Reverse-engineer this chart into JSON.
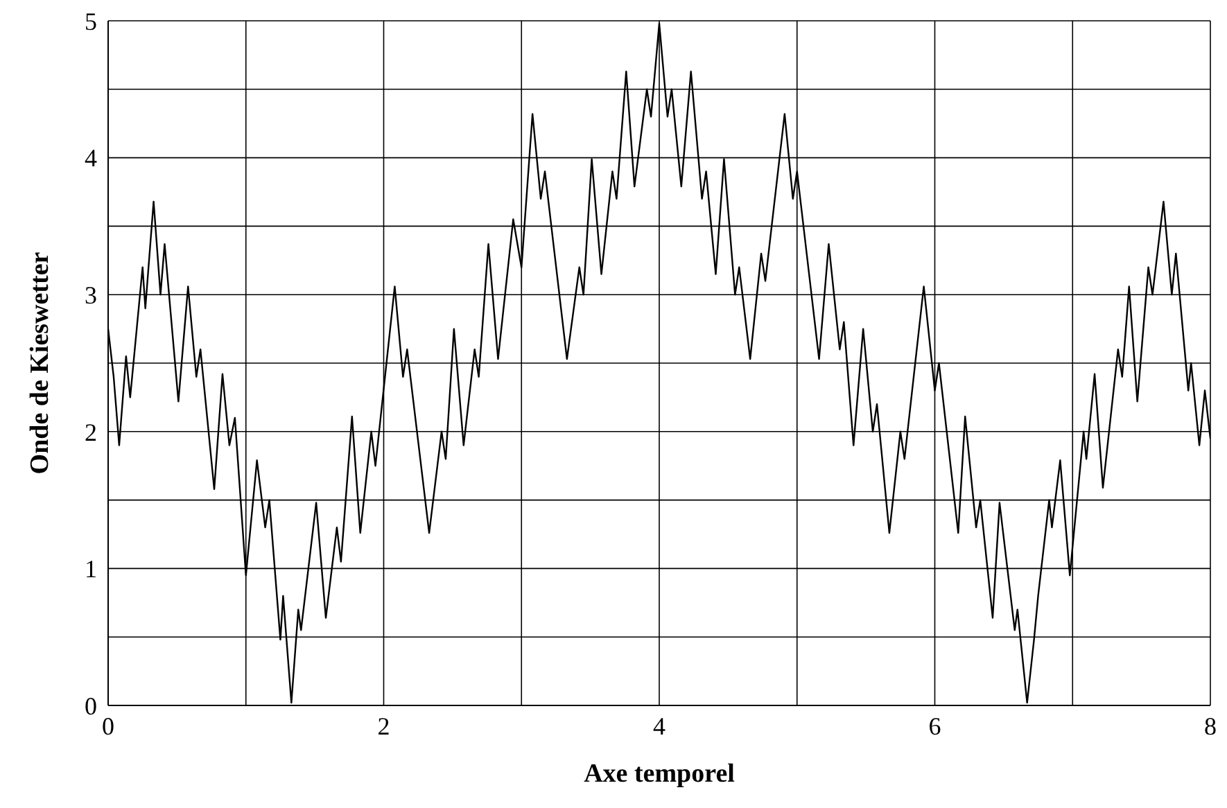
{
  "chart_data": {
    "type": "line",
    "xlabel": "Axe temporel",
    "ylabel": "Onde de Kieswetter",
    "xlim": [
      0,
      8
    ],
    "ylim": [
      0,
      5
    ],
    "xticks": [
      0,
      {
        "value": 1,
        "label": null
      },
      2,
      {
        "value": 3,
        "label": null
      },
      4,
      {
        "value": 5,
        "label": null
      },
      6,
      {
        "value": 7,
        "label": null
      },
      8
    ],
    "yticks": [
      0,
      {
        "value": 0.5,
        "label": null
      },
      1,
      {
        "value": 1.5,
        "label": null
      },
      2,
      {
        "value": 2.5,
        "label": null
      },
      3,
      {
        "value": 3.5,
        "label": null
      },
      4,
      {
        "value": 4.5,
        "label": null
      },
      5
    ],
    "grid": true,
    "marker": "none",
    "line_style": "solid",
    "series": [
      {
        "color": "#000000",
        "x": [
          0,
          0.04,
          0.08,
          0.13,
          0.16,
          0.25,
          0.27,
          0.33,
          0.38,
          0.41,
          0.51,
          0.58,
          0.64,
          0.67,
          0.77,
          0.83,
          0.88,
          0.92,
          1.0,
          1.08,
          1.14,
          1.17,
          1.25,
          1.27,
          1.33,
          1.38,
          1.4,
          1.51,
          1.58,
          1.66,
          1.69,
          1.77,
          1.83,
          1.91,
          1.94,
          2.08,
          2.14,
          2.17,
          2.33,
          2.42,
          2.45,
          2.51,
          2.58,
          2.66,
          2.69,
          2.76,
          2.83,
          2.94,
          3.0,
          3.08,
          3.14,
          3.17,
          3.33,
          3.42,
          3.45,
          3.51,
          3.58,
          3.66,
          3.69,
          3.76,
          3.82,
          3.91,
          3.94,
          4.0,
          4.06,
          4.09,
          4.16,
          4.23,
          4.31,
          4.34,
          4.41,
          4.47,
          4.55,
          4.58,
          4.66,
          4.74,
          4.77,
          4.91,
          4.97,
          5.0,
          5.16,
          5.23,
          5.31,
          5.34,
          5.41,
          5.48,
          5.55,
          5.58,
          5.67,
          5.75,
          5.78,
          5.92,
          6.0,
          6.03,
          6.17,
          6.22,
          6.3,
          6.33,
          6.42,
          6.47,
          6.58,
          6.6,
          6.67,
          6.72,
          6.75,
          6.83,
          6.85,
          6.91,
          6.98,
          7.08,
          7.1,
          7.16,
          7.22,
          7.33,
          7.36,
          7.41,
          7.47,
          7.55,
          7.58,
          7.66,
          7.72,
          7.75,
          7.84,
          7.86,
          7.92,
          7.96,
          8.0
        ],
        "values": [
          2.75,
          2.4,
          1.9,
          2.55,
          2.25,
          3.2,
          2.9,
          3.68,
          3.0,
          3.37,
          2.22,
          3.06,
          2.4,
          2.6,
          1.58,
          2.42,
          1.9,
          2.1,
          0.95,
          1.79,
          1.3,
          1.5,
          0.48,
          0.8,
          0.02,
          0.7,
          0.55,
          1.48,
          0.64,
          1.3,
          1.05,
          2.11,
          1.26,
          2.0,
          1.75,
          3.06,
          2.4,
          2.6,
          1.26,
          2.0,
          1.8,
          2.75,
          1.9,
          2.6,
          2.4,
          3.37,
          2.53,
          3.55,
          3.2,
          4.32,
          3.7,
          3.9,
          2.53,
          3.2,
          3.0,
          3.99,
          3.15,
          3.9,
          3.7,
          4.63,
          3.79,
          4.5,
          4.3,
          4.98,
          4.3,
          4.5,
          3.79,
          4.63,
          3.7,
          3.9,
          3.15,
          3.99,
          3.0,
          3.2,
          2.53,
          3.3,
          3.1,
          4.32,
          3.7,
          3.9,
          2.53,
          3.37,
          2.6,
          2.8,
          1.9,
          2.75,
          2.0,
          2.2,
          1.26,
          2.0,
          1.8,
          3.06,
          2.3,
          2.5,
          1.26,
          2.11,
          1.3,
          1.5,
          0.64,
          1.48,
          0.55,
          0.7,
          0.02,
          0.48,
          0.8,
          1.5,
          1.3,
          1.79,
          0.95,
          2.0,
          1.8,
          2.42,
          1.59,
          2.6,
          2.4,
          3.06,
          2.22,
          3.2,
          3.0,
          3.68,
          3.0,
          3.3,
          2.3,
          2.5,
          1.9,
          2.3,
          1.95
        ]
      }
    ]
  }
}
